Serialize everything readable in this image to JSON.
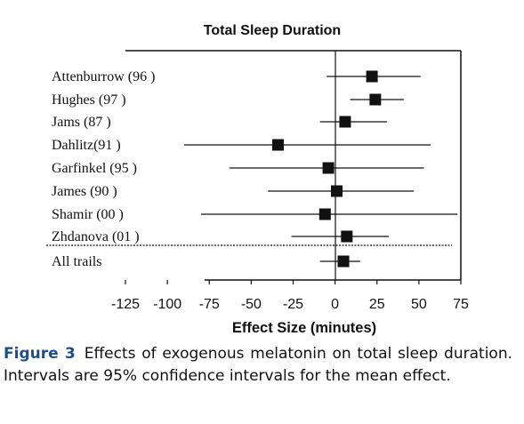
{
  "chart_data": {
    "type": "forest",
    "title": "Total Sleep Duration",
    "xlabel": "Effect Size (minutes)",
    "xlim": [
      -125,
      75
    ],
    "xticks": [
      -125,
      -100,
      -75,
      -50,
      -25,
      0,
      25,
      50,
      75
    ],
    "studies": [
      {
        "label": "Attenburrow  (96 )",
        "estimate": 22,
        "lower": -5,
        "upper": 51
      },
      {
        "label": "Hughes (97 )",
        "estimate": 24,
        "lower": 9,
        "upper": 41
      },
      {
        "label": "Jams (87 )",
        "estimate": 6,
        "lower": -9,
        "upper": 31
      },
      {
        "label": "Dahlitz(91 )",
        "estimate": -34,
        "lower": -90,
        "upper": 57
      },
      {
        "label": "Garfinkel (95 )",
        "estimate": -4,
        "lower": -63,
        "upper": 53
      },
      {
        "label": "James (90 )",
        "estimate": 1,
        "lower": -40,
        "upper": 47
      },
      {
        "label": "Shamir (00 )",
        "estimate": -6,
        "lower": -80,
        "upper": 73
      },
      {
        "label": "Zhdanova  (01 )",
        "estimate": 7,
        "lower": -26,
        "upper": 32
      }
    ],
    "summary": {
      "label": "All trails",
      "estimate": 5,
      "lower": -9,
      "upper": 15
    }
  },
  "caption": {
    "figure_label": "Figure 3",
    "text": "Effects of exogenous melatonin on total sleep duration. Intervals are 95% confidence intervals for the mean effect."
  }
}
